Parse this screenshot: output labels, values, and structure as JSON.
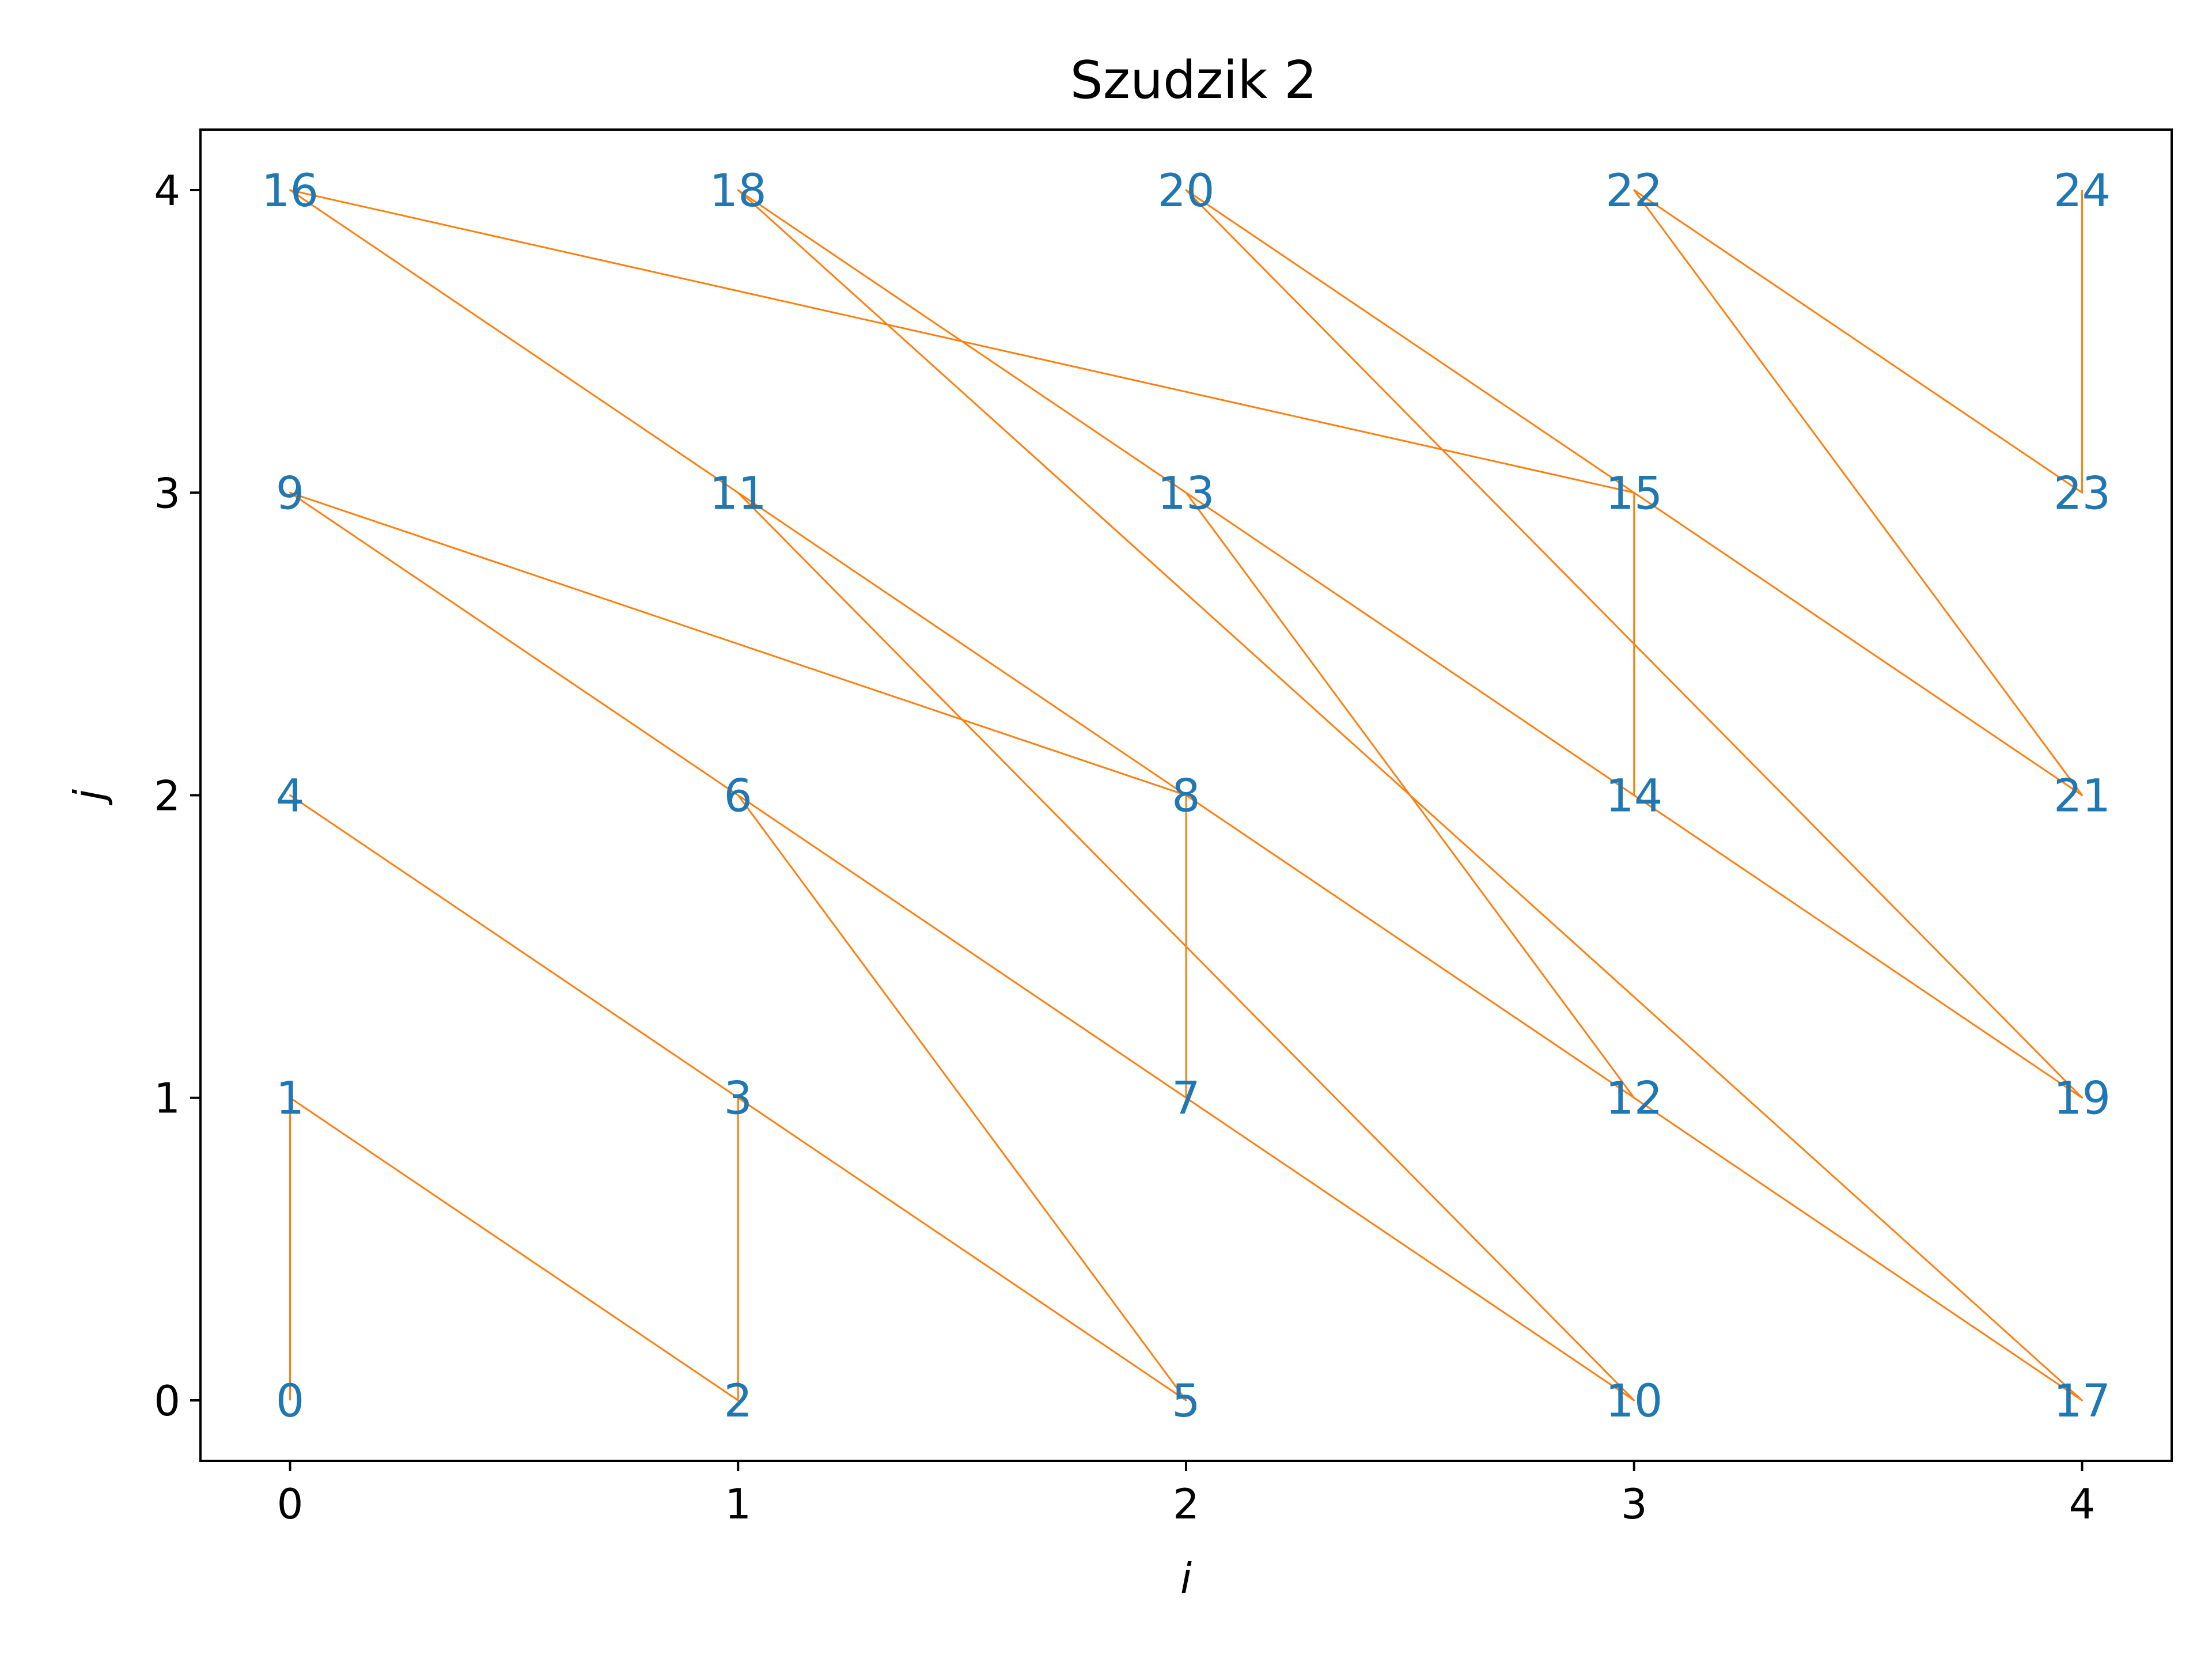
{
  "chart_data": {
    "type": "line",
    "title": "Szudzik 2",
    "xlabel": "i",
    "ylabel": "j",
    "xlim": [
      -0.2,
      4.2
    ],
    "ylim": [
      -0.2,
      4.2
    ],
    "xticks": [
      0,
      1,
      2,
      3,
      4
    ],
    "yticks": [
      0,
      1,
      2,
      3,
      4
    ],
    "grid": false,
    "line_color": "#ff7f0e",
    "label_color": "#1f77b4",
    "points": [
      {
        "x": 0,
        "y": 0,
        "label": "0"
      },
      {
        "x": 0,
        "y": 1,
        "label": "1"
      },
      {
        "x": 1,
        "y": 0,
        "label": "2"
      },
      {
        "x": 1,
        "y": 1,
        "label": "3"
      },
      {
        "x": 0,
        "y": 2,
        "label": "4"
      },
      {
        "x": 2,
        "y": 0,
        "label": "5"
      },
      {
        "x": 1,
        "y": 2,
        "label": "6"
      },
      {
        "x": 2,
        "y": 1,
        "label": "7"
      },
      {
        "x": 2,
        "y": 2,
        "label": "8"
      },
      {
        "x": 0,
        "y": 3,
        "label": "9"
      },
      {
        "x": 3,
        "y": 0,
        "label": "10"
      },
      {
        "x": 1,
        "y": 3,
        "label": "11"
      },
      {
        "x": 3,
        "y": 1,
        "label": "12"
      },
      {
        "x": 2,
        "y": 3,
        "label": "13"
      },
      {
        "x": 3,
        "y": 2,
        "label": "14"
      },
      {
        "x": 3,
        "y": 3,
        "label": "15"
      },
      {
        "x": 0,
        "y": 4,
        "label": "16"
      },
      {
        "x": 4,
        "y": 0,
        "label": "17"
      },
      {
        "x": 1,
        "y": 4,
        "label": "18"
      },
      {
        "x": 4,
        "y": 1,
        "label": "19"
      },
      {
        "x": 2,
        "y": 4,
        "label": "20"
      },
      {
        "x": 4,
        "y": 2,
        "label": "21"
      },
      {
        "x": 3,
        "y": 4,
        "label": "22"
      },
      {
        "x": 4,
        "y": 3,
        "label": "23"
      },
      {
        "x": 4,
        "y": 4,
        "label": "24"
      }
    ]
  }
}
